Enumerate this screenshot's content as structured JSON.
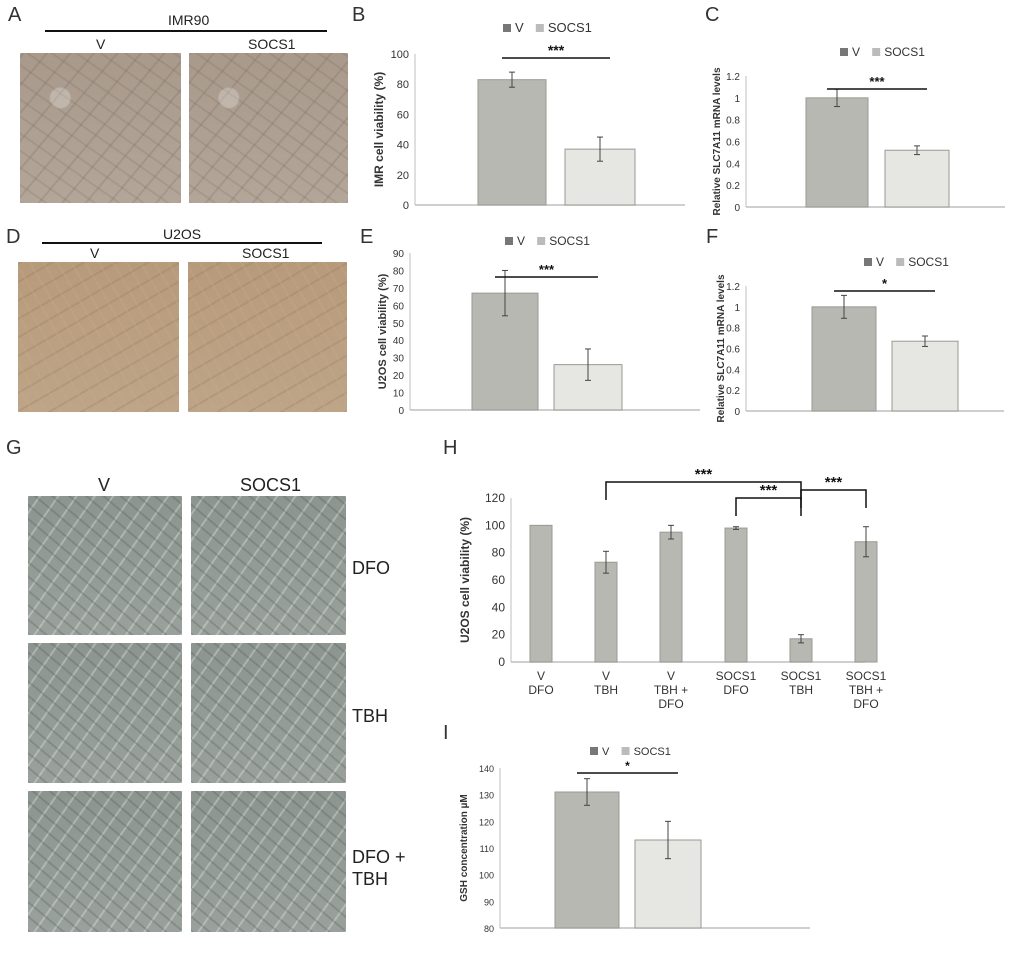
{
  "panels": {
    "A": {
      "letter": "A",
      "header": "IMR90",
      "left": "V",
      "right": "SOCS1"
    },
    "D": {
      "letter": "D",
      "header": "U2OS",
      "left": "V",
      "right": "SOCS1"
    },
    "G": {
      "letter": "G",
      "left": "V",
      "right": "SOCS1",
      "rows": [
        "DFO",
        "TBH",
        "DFO +\nTBH"
      ]
    },
    "B": {
      "letter": "B"
    },
    "C": {
      "letter": "C"
    },
    "E": {
      "letter": "E"
    },
    "F": {
      "letter": "F"
    },
    "H": {
      "letter": "H"
    },
    "I": {
      "letter": "I"
    }
  },
  "colors": {
    "bar_v": "#b8b8b2",
    "bar_socs1": "#e6e6e2",
    "legend_v": "#777777",
    "legend_socs1": "#bbbbbb",
    "axis": "#bfbfbf"
  },
  "chart_data": [
    {
      "id": "B",
      "type": "bar",
      "ylabel": "IMR cell viability (%)",
      "ylim": [
        0,
        100
      ],
      "yticks": [
        "0",
        "20",
        "40",
        "60",
        "80",
        "100"
      ],
      "legend": [
        "V",
        "SOCS1"
      ],
      "categories": [
        "V",
        "SOCS1"
      ],
      "values": [
        83,
        37
      ],
      "errors": [
        5,
        8
      ],
      "significance": [
        {
          "from": 0,
          "to": 1,
          "label": "***"
        }
      ]
    },
    {
      "id": "C",
      "type": "bar",
      "ylabel": "Relative SLC7A11 mRNA levels",
      "ylim": [
        0,
        1.2
      ],
      "yticks": [
        "0",
        "0.2",
        "0.4",
        "0.6",
        "0.8",
        "1",
        "1.2"
      ],
      "legend": [
        "V",
        "SOCS1"
      ],
      "categories": [
        "V",
        "SOCS1"
      ],
      "values": [
        1.0,
        0.52
      ],
      "errors": [
        0.08,
        0.04
      ],
      "significance": [
        {
          "from": 0,
          "to": 1,
          "label": "***"
        }
      ]
    },
    {
      "id": "E",
      "type": "bar",
      "ylabel": "U2OS cell viability (%)",
      "ylim": [
        0,
        90
      ],
      "yticks": [
        "0",
        "10",
        "20",
        "30",
        "40",
        "50",
        "60",
        "70",
        "80",
        "90"
      ],
      "legend": [
        "V",
        "SOCS1"
      ],
      "categories": [
        "V",
        "SOCS1"
      ],
      "values": [
        67,
        26
      ],
      "errors": [
        13,
        9
      ],
      "significance": [
        {
          "from": 0,
          "to": 1,
          "label": "***"
        }
      ]
    },
    {
      "id": "F",
      "type": "bar",
      "ylabel": "Relative SLC7A11 mRNA levels",
      "ylim": [
        0,
        1.2
      ],
      "yticks": [
        "0",
        "0.2",
        "0.4",
        "0.6",
        "0.8",
        "1",
        "1.2"
      ],
      "legend": [
        "V",
        "SOCS1"
      ],
      "categories": [
        "V",
        "SOCS1"
      ],
      "values": [
        1.0,
        0.67
      ],
      "errors": [
        0.11,
        0.05
      ],
      "significance": [
        {
          "from": 0,
          "to": 1,
          "label": "*"
        }
      ]
    },
    {
      "id": "H",
      "type": "bar",
      "ylabel": "U2OS cell viability (%)",
      "ylim": [
        0,
        120
      ],
      "yticks": [
        "0",
        "20",
        "40",
        "60",
        "80",
        "100",
        "120"
      ],
      "legend": [],
      "categories": [
        "V\nDFO",
        "V\nTBH",
        "V\nTBH +\nDFO",
        "SOCS1\nDFO",
        "SOCS1\nTBH",
        "SOCS1\nTBH +\nDFO"
      ],
      "values": [
        100,
        73,
        95,
        98,
        17,
        88
      ],
      "errors": [
        0,
        8,
        5,
        1,
        3,
        11
      ],
      "significance": [
        {
          "from": 1,
          "to": 4,
          "label": "***"
        },
        {
          "from": 3,
          "to": 4,
          "label": "***"
        },
        {
          "from": 4,
          "to": 5,
          "label": "***"
        }
      ]
    },
    {
      "id": "I",
      "type": "bar",
      "ylabel": "GSH concentration µM",
      "ylim": [
        80,
        140
      ],
      "yticks": [
        "80",
        "90",
        "100",
        "110",
        "120",
        "130",
        "140"
      ],
      "legend": [
        "V",
        "SOCS1"
      ],
      "categories": [
        "V",
        "SOCS1"
      ],
      "values": [
        131,
        113
      ],
      "errors": [
        5,
        7
      ],
      "significance": [
        {
          "from": 0,
          "to": 1,
          "label": "*"
        }
      ]
    }
  ]
}
